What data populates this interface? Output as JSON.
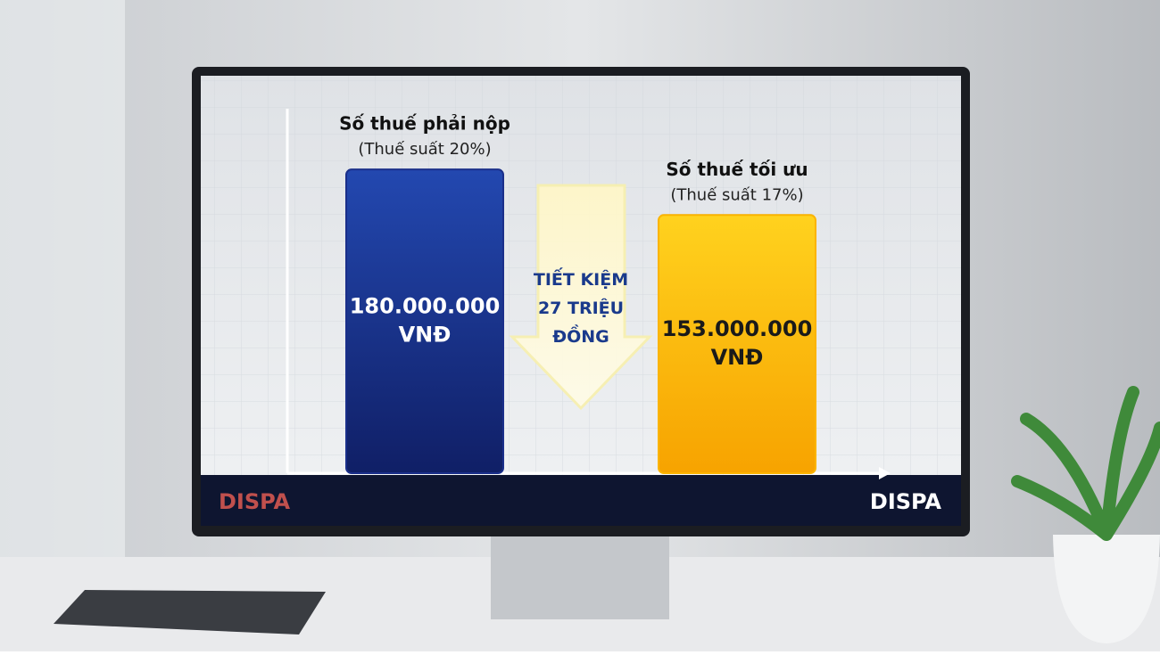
{
  "chart_data": {
    "type": "bar",
    "categories": [
      "Số thuế phải nộp",
      "Số thuế tối ưu"
    ],
    "category_notes": [
      "(Thuế suất 20%)",
      "(Thuế suất 17%)"
    ],
    "values": [
      180000000,
      153000000
    ],
    "value_labels": [
      "180.000.000 VNĐ",
      "153.000.000 VNĐ"
    ],
    "colors": [
      "#1a2f8a",
      "#fbb400"
    ],
    "ylim": [
      0,
      216000000
    ],
    "annotation": "TIẾT KIỆM 27 TRIỆU ĐỒNG",
    "logos": [
      "DISPA",
      "DISPA"
    ]
  }
}
